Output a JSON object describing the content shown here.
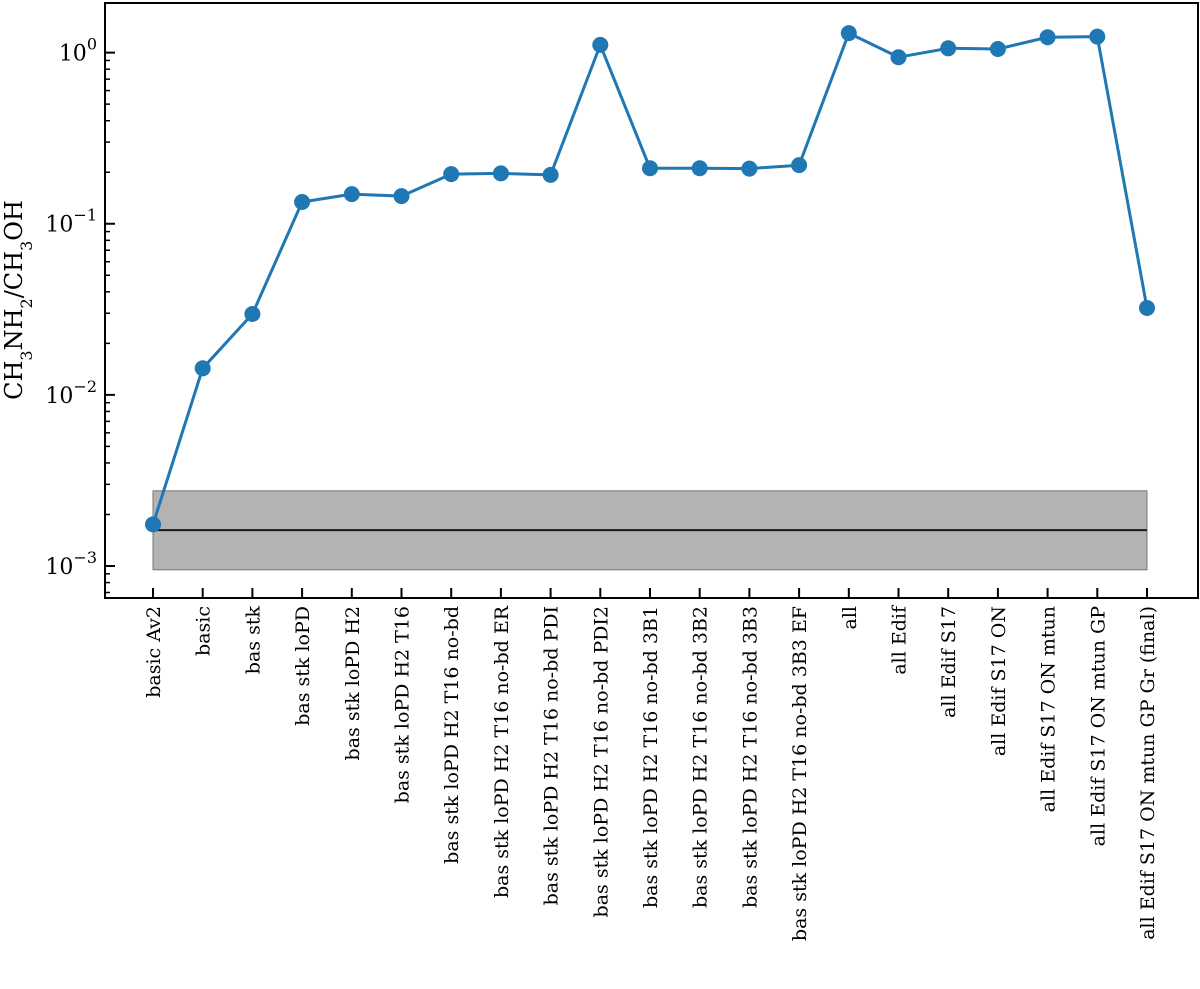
{
  "chart_data": {
    "type": "line",
    "ylabel": "CH3NH2/CH3OH",
    "ylabel_parts": [
      {
        "text": "CH",
        "sub": false
      },
      {
        "text": "3",
        "sub": true
      },
      {
        "text": "NH",
        "sub": false
      },
      {
        "text": "2",
        "sub": true
      },
      {
        "text": "/CH",
        "sub": false
      },
      {
        "text": "3",
        "sub": true
      },
      {
        "text": "OH",
        "sub": false
      }
    ],
    "yscale": "log",
    "ylim": [
      0.00065,
      1.95
    ],
    "yticks": [
      {
        "value": 0.001,
        "base": "10",
        "exp": "−3"
      },
      {
        "value": 0.01,
        "base": "10",
        "exp": "−2"
      },
      {
        "value": 0.1,
        "base": "10",
        "exp": "−1"
      },
      {
        "value": 1,
        "base": "10",
        "exp": "0"
      }
    ],
    "categories": [
      "basic Av2",
      "basic",
      "bas stk",
      "bas stk loPD",
      "bas stk loPD H2",
      "bas stk loPD H2 T16",
      "bas stk loPD H2 T16 no-bd",
      "bas stk loPD H2 T16 no-bd ER",
      "bas stk loPD H2 T16 no-bd PDI",
      "bas stk loPD H2 T16 no-bd PDI2",
      "bas stk loPD H2 T16 no-bd 3B1",
      "bas stk loPD H2 T16 no-bd 3B2",
      "bas stk loPD H2 T16 no-bd 3B3",
      "bas stk loPD H2 T16 no-bd 3B3 EF",
      "all",
      "all Edif",
      "all Edif S17",
      "all Edif S17 ON",
      "all Edif S17 ON mtun",
      "all Edif S17 ON mtun GP",
      "all Edif S17 ON mtun GP Gr (final)"
    ],
    "series": [
      {
        "values": [
          0.00175,
          0.0143,
          0.0297,
          0.134,
          0.149,
          0.145,
          0.195,
          0.197,
          0.193,
          1.11,
          0.211,
          0.211,
          0.21,
          0.22,
          1.3,
          0.94,
          1.06,
          1.05,
          1.23,
          1.24,
          0.0322
        ],
        "color": "#1f77b4"
      }
    ],
    "reference": {
      "value": 0.00162,
      "band": [
        0.00095,
        0.00275
      ],
      "line_color": "#1a1a1a",
      "band_color": "#b3b3b3"
    }
  }
}
